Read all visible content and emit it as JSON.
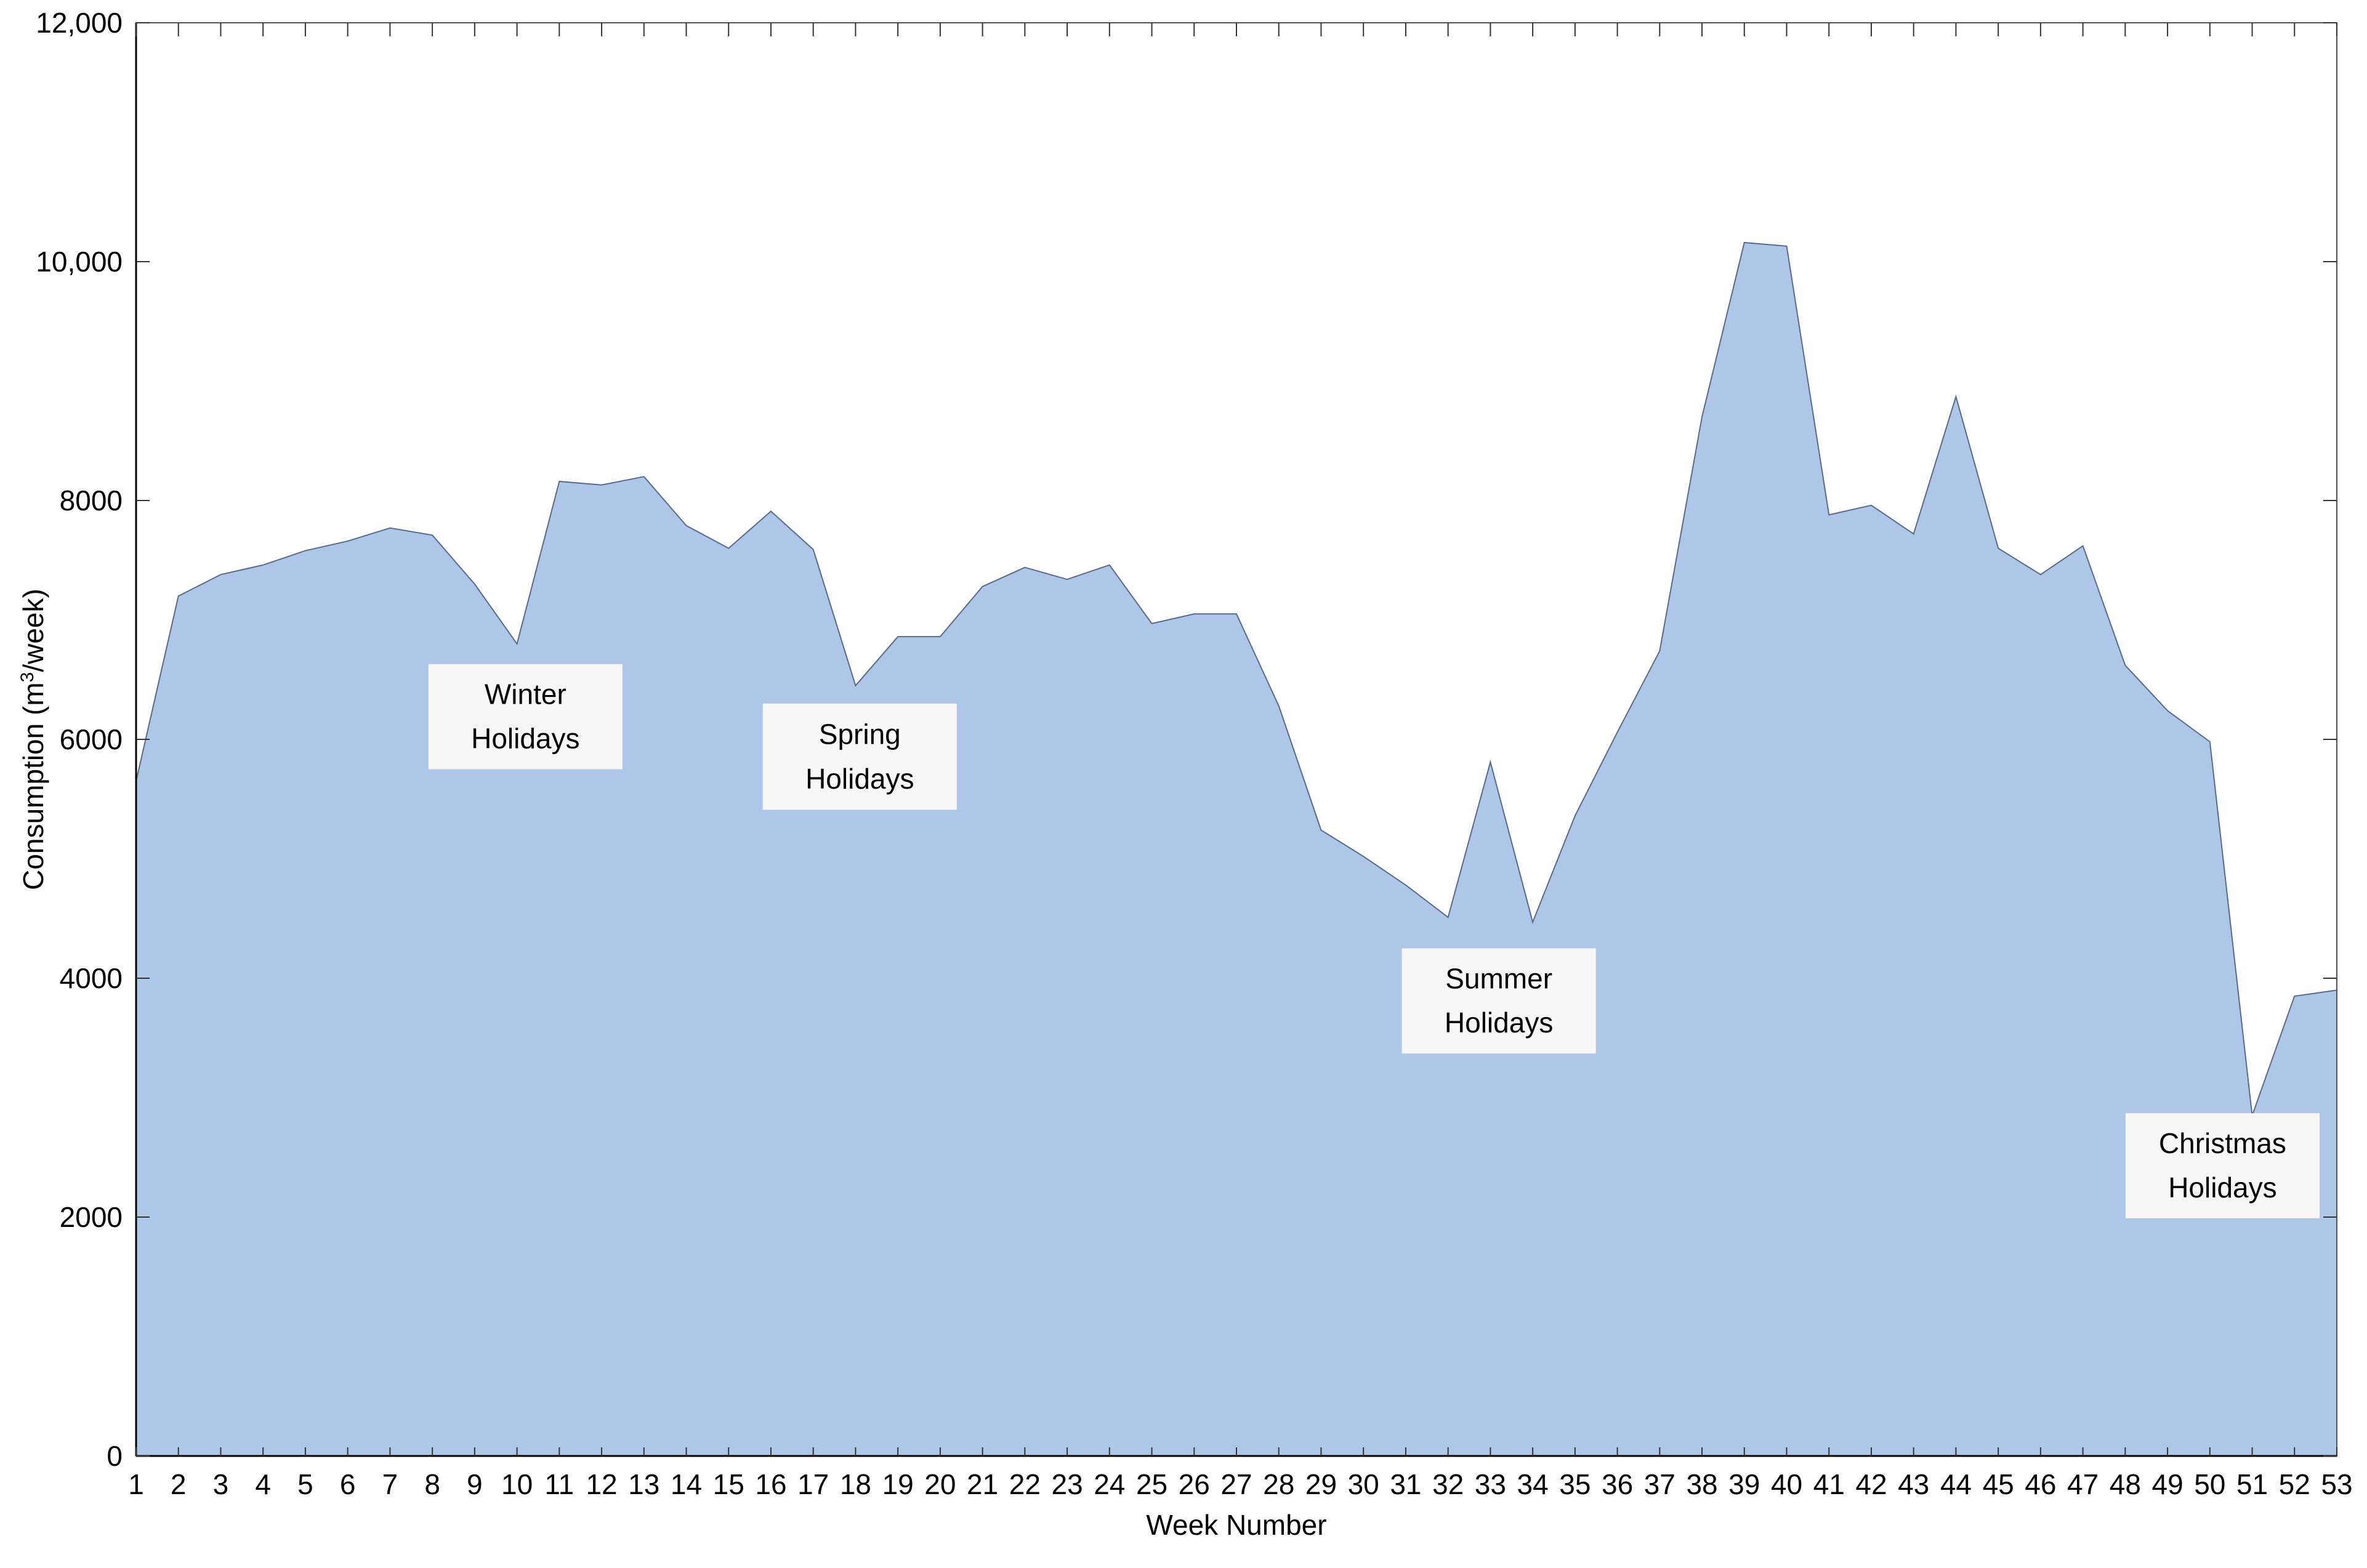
{
  "chart_data": {
    "type": "area",
    "title": "",
    "xlabel": "Week Number",
    "ylabel_main": "Consumption (m",
    "ylabel_sup": "3",
    "ylabel_tail": "/week)",
    "xlim": [
      1,
      53
    ],
    "ylim": [
      0,
      12000
    ],
    "x_ticks": [
      1,
      2,
      3,
      4,
      5,
      6,
      7,
      8,
      9,
      10,
      11,
      12,
      13,
      14,
      15,
      16,
      17,
      18,
      19,
      20,
      21,
      22,
      23,
      24,
      25,
      26,
      27,
      28,
      29,
      30,
      31,
      32,
      33,
      34,
      35,
      36,
      37,
      38,
      39,
      40,
      41,
      42,
      43,
      44,
      45,
      46,
      47,
      48,
      49,
      50,
      51,
      52,
      53
    ],
    "y_ticks": [
      {
        "value": 0,
        "label": "0"
      },
      {
        "value": 2000,
        "label": "2000"
      },
      {
        "value": 4000,
        "label": "4000"
      },
      {
        "value": 6000,
        "label": "6000"
      },
      {
        "value": 8000,
        "label": "8000"
      },
      {
        "value": 10000,
        "label": "10,000"
      },
      {
        "value": 12000,
        "label": "12,000"
      }
    ],
    "grid": false,
    "colors": {
      "fill": "#aec7e8",
      "line": "#5a6b85",
      "axis": "#000000",
      "annotation_bg": "#f7f7f7"
    },
    "x": [
      1,
      2,
      3,
      4,
      5,
      6,
      7,
      8,
      9,
      10,
      11,
      12,
      13,
      14,
      15,
      16,
      17,
      18,
      19,
      20,
      21,
      22,
      23,
      24,
      25,
      26,
      27,
      28,
      29,
      30,
      31,
      32,
      33,
      34,
      35,
      36,
      37,
      38,
      39,
      40,
      41,
      42,
      43,
      44,
      45,
      46,
      47,
      48,
      49,
      50,
      51,
      52,
      53
    ],
    "values": [
      5650,
      7200,
      7380,
      7460,
      7580,
      7660,
      7770,
      7710,
      7300,
      6800,
      8160,
      8130,
      8200,
      7790,
      7600,
      7910,
      7590,
      6450,
      6860,
      6860,
      7280,
      7440,
      7340,
      7460,
      6970,
      7050,
      7050,
      6280,
      5240,
      5020,
      4780,
      4510,
      5810,
      4470,
      5360,
      6060,
      6740,
      8700,
      10160,
      10130,
      7880,
      7960,
      7720,
      8870,
      7600,
      7380,
      7620,
      6620,
      6240,
      5980,
      2850,
      3850,
      3900
    ],
    "annotations": [
      {
        "line1": "Winter",
        "line2": "Holidays",
        "x_center": 10.2,
        "y_top": 6630,
        "y_bottom": 5750
      },
      {
        "line1": "Spring",
        "line2": "Holidays",
        "x_center": 18.1,
        "y_top": 6300,
        "y_bottom": 5410
      },
      {
        "line1": "Summer",
        "line2": "Holidays",
        "x_center": 33.2,
        "y_top": 4250,
        "y_bottom": 3370
      },
      {
        "line1": "Christmas",
        "line2": "Holidays",
        "x_center": 50.3,
        "y_top": 2870,
        "y_bottom": 1990
      }
    ]
  }
}
